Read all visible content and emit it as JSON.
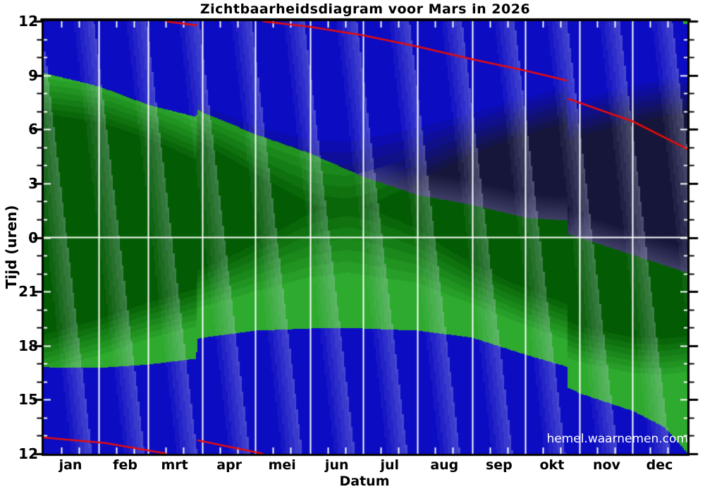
{
  "title": "Zichtbaarheidsdiagram voor Mars in 2026",
  "watermark": "hemel.waarnemen.com",
  "axes": {
    "x_label": "Datum",
    "y_label": "Tijd (uren)",
    "month_labels": [
      "jan",
      "feb",
      "mrt",
      "apr",
      "mei",
      "jun",
      "jul",
      "aug",
      "sep",
      "okt",
      "nov",
      "dec"
    ],
    "y_tick_labels": [
      "12",
      "9",
      "6",
      "3",
      "0",
      "21",
      "18",
      "15",
      "12"
    ]
  },
  "colors": {
    "day_blue": "#0c0cc3",
    "night_navy": "#16163a",
    "green_bright": "#2eaa2e",
    "green_dark": "#035c03",
    "transit_red": "#e60c0c",
    "moonlight_overlay": "#cdd2f0",
    "low_altitude_haze": "#696994",
    "grid_white": "#ffffff",
    "frame_black": "#000000"
  },
  "chart_data": {
    "type": "area",
    "title": "Zichtbaarheidsdiagram voor Mars in 2026",
    "xlabel": "Datum",
    "ylabel": "Tijd (uren)",
    "x_range_days": [
      0,
      365
    ],
    "month_start_days": [
      0,
      31,
      59,
      90,
      120,
      151,
      181,
      212,
      243,
      273,
      304,
      334
    ],
    "y_axis_hours_after_noon_range": [
      0,
      24
    ],
    "y_tick_hours_clock": [
      12,
      9,
      6,
      3,
      0,
      21,
      18,
      15,
      12
    ],
    "dst_jump_days": {
      "spring_forward": 87,
      "fall_back": 297
    },
    "units_note": "curve points are [day_of_year, hours_after_noon]; 0=12:00 noon, 12=0:00 midnight, 24=12:00 next noon",
    "series": [
      {
        "name": "mars_set_boundary",
        "color_side": "green_region_lower_edge",
        "points": [
          [
            0,
            4.82
          ],
          [
            31,
            4.78
          ],
          [
            59,
            4.97
          ],
          [
            86,
            5.29
          ],
          [
            87.5,
            6.42
          ],
          [
            120,
            6.85
          ],
          [
            151,
            6.97
          ],
          [
            181,
            6.97
          ],
          [
            212,
            6.85
          ],
          [
            243,
            6.46
          ],
          [
            273,
            5.52
          ],
          [
            296.5,
            4.85
          ],
          [
            297.5,
            3.68
          ],
          [
            304,
            3.37
          ],
          [
            334,
            2.39
          ],
          [
            352,
            1.49
          ],
          [
            362,
            0.39
          ],
          [
            365,
            0.05
          ]
        ]
      },
      {
        "name": "mars_rise_boundary",
        "color_side": "green_region_upper_edge",
        "points": [
          [
            0,
            21.14
          ],
          [
            31,
            20.4
          ],
          [
            59,
            19.38
          ],
          [
            86,
            18.71
          ],
          [
            87.5,
            19.07
          ],
          [
            120,
            17.74
          ],
          [
            151,
            16.68
          ],
          [
            181,
            15.39
          ],
          [
            212,
            14.37
          ],
          [
            243,
            13.82
          ],
          [
            274,
            13.1
          ],
          [
            296.5,
            12.96
          ],
          [
            297.5,
            12.2
          ],
          [
            305,
            11.97
          ],
          [
            334,
            11.05
          ],
          [
            365,
            10.06
          ]
        ]
      },
      {
        "name": "sunset_twilight",
        "points": [
          [
            0,
            4.63
          ],
          [
            31,
            5.5
          ],
          [
            59,
            6.42
          ],
          [
            86,
            7.08
          ],
          [
            87.5,
            8.12
          ],
          [
            120,
            9.05
          ],
          [
            151,
            9.83
          ],
          [
            172,
            10.07
          ],
          [
            212,
            9.5
          ],
          [
            243,
            8.33
          ],
          [
            273,
            7.17
          ],
          [
            296.5,
            6.35
          ],
          [
            297.5,
            5.35
          ],
          [
            304,
            5.1
          ],
          [
            334,
            4.5
          ],
          [
            352,
            4.42
          ],
          [
            365,
            4.6
          ]
        ]
      },
      {
        "name": "sunrise_twilight",
        "points": [
          [
            0,
            20.83
          ],
          [
            31,
            20.42
          ],
          [
            59,
            19.5
          ],
          [
            86,
            18.45
          ],
          [
            87.5,
            19.42
          ],
          [
            120,
            18.17
          ],
          [
            151,
            17.42
          ],
          [
            172,
            17.33
          ],
          [
            212,
            18.08
          ],
          [
            243,
            18.92
          ],
          [
            273,
            19.75
          ],
          [
            296.5,
            20.38
          ],
          [
            297.5,
            19.38
          ],
          [
            304,
            19.65
          ],
          [
            334,
            20.42
          ],
          [
            355,
            20.82
          ],
          [
            365,
            20.85
          ]
        ]
      }
    ],
    "transit_segments": [
      [
        [
          0,
          0.9
        ],
        [
          35,
          0.6
        ],
        [
          69,
          0.02
        ]
      ],
      [
        [
          70,
          23.98
        ],
        [
          86.5,
          23.77
        ]
      ],
      [
        [
          87.5,
          0.74
        ],
        [
          124,
          0.01
        ]
      ],
      [
        [
          124.5,
          23.99
        ],
        [
          151,
          23.69
        ],
        [
          181,
          23.22
        ],
        [
          212,
          22.59
        ],
        [
          243,
          21.89
        ],
        [
          273,
          21.26
        ],
        [
          296.5,
          20.71
        ]
      ],
      [
        [
          297.5,
          19.69
        ],
        [
          334,
          18.44
        ],
        [
          365,
          16.91
        ]
      ]
    ]
  }
}
